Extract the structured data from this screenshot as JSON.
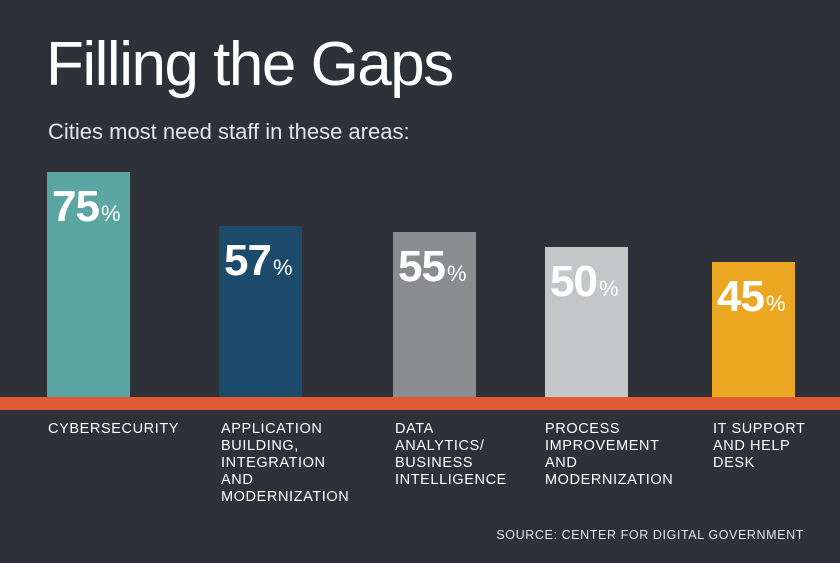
{
  "chart_data": {
    "type": "bar",
    "title": "Filling the Gaps",
    "subtitle": "Cities most need staff in these areas:",
    "categories": [
      [
        "CYBERSECURITY"
      ],
      [
        "APPLICATION",
        "BUILDING,",
        "INTEGRATION",
        "AND",
        "MODERNIZATION"
      ],
      [
        "DATA",
        "ANALYTICS/",
        "BUSINESS",
        "INTELLIGENCE"
      ],
      [
        "PROCESS",
        "IMPROVEMENT",
        "AND",
        "MODERNIZATION"
      ],
      [
        "IT SUPPORT",
        "AND HELP",
        "DESK"
      ]
    ],
    "values": [
      75,
      57,
      55,
      50,
      45
    ],
    "value_labels": [
      "75",
      "57",
      "55",
      "50",
      "45"
    ],
    "unit": "%",
    "bar_colors": [
      "#5ba6a3",
      "#1b4a6b",
      "#8b8c90",
      "#c4c6c8",
      "#eba722"
    ],
    "baseline_color": "#e15a36",
    "ylim": [
      0,
      75
    ],
    "xlabel": "",
    "ylabel": "",
    "legend": "none",
    "grid": false
  },
  "source": "SOURCE: CENTER FOR DIGITAL GOVERNMENT"
}
